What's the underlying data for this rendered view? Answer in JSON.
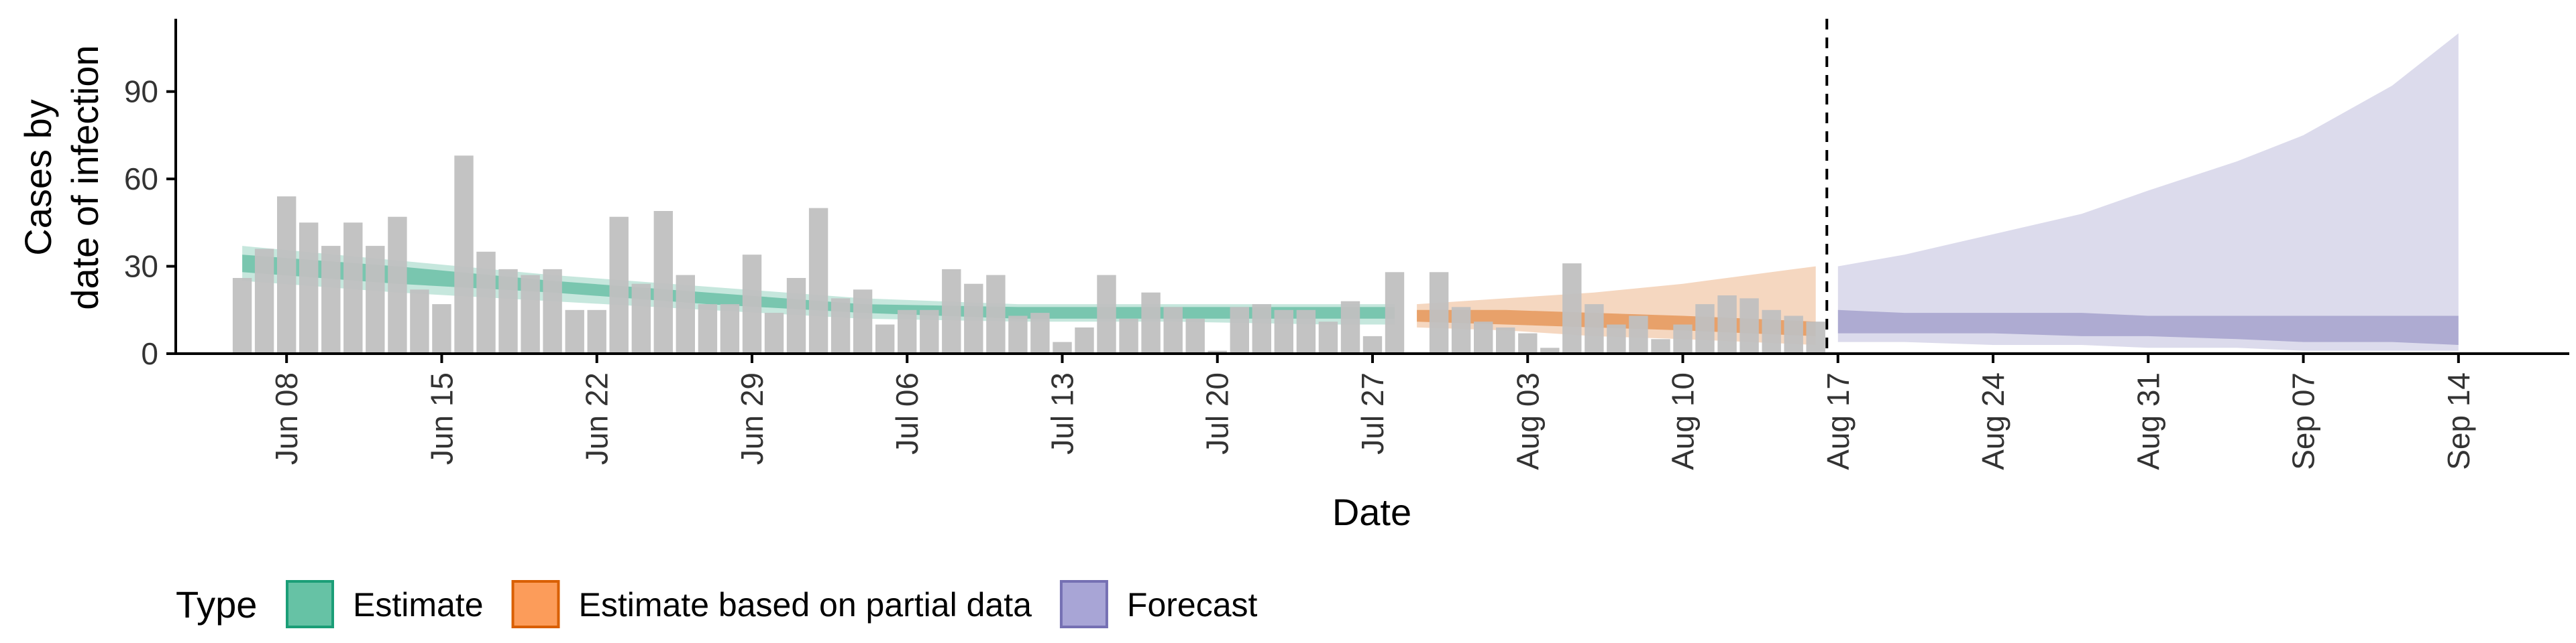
{
  "chart_data": {
    "type": "bar",
    "xlabel": "Date",
    "ylabel_lines": [
      "Cases by",
      "date of infection"
    ],
    "ylim": [
      0,
      115
    ],
    "y_ticks": [
      0,
      30,
      60,
      90
    ],
    "x_range": [
      "2020-06-03",
      "2020-09-19"
    ],
    "x_ticks": [
      {
        "date": "2020-06-08",
        "label": "Jun 08"
      },
      {
        "date": "2020-06-15",
        "label": "Jun 15"
      },
      {
        "date": "2020-06-22",
        "label": "Jun 22"
      },
      {
        "date": "2020-06-29",
        "label": "Jun 29"
      },
      {
        "date": "2020-07-06",
        "label": "Jul 06"
      },
      {
        "date": "2020-07-13",
        "label": "Jul 13"
      },
      {
        "date": "2020-07-20",
        "label": "Jul 20"
      },
      {
        "date": "2020-07-27",
        "label": "Jul 27"
      },
      {
        "date": "2020-08-03",
        "label": "Aug 03"
      },
      {
        "date": "2020-08-10",
        "label": "Aug 10"
      },
      {
        "date": "2020-08-17",
        "label": "Aug 17"
      },
      {
        "date": "2020-08-24",
        "label": "Aug 24"
      },
      {
        "date": "2020-08-31",
        "label": "Aug 31"
      },
      {
        "date": "2020-09-07",
        "label": "Sep 07"
      },
      {
        "date": "2020-09-14",
        "label": "Sep 14"
      }
    ],
    "forecast_start": "2020-08-16",
    "bars": {
      "dates": [
        "2020-06-06",
        "2020-06-07",
        "2020-06-08",
        "2020-06-09",
        "2020-06-10",
        "2020-06-11",
        "2020-06-12",
        "2020-06-13",
        "2020-06-14",
        "2020-06-15",
        "2020-06-16",
        "2020-06-17",
        "2020-06-18",
        "2020-06-19",
        "2020-06-20",
        "2020-06-21",
        "2020-06-22",
        "2020-06-23",
        "2020-06-24",
        "2020-06-25",
        "2020-06-26",
        "2020-06-27",
        "2020-06-28",
        "2020-06-29",
        "2020-06-30",
        "2020-07-01",
        "2020-07-02",
        "2020-07-03",
        "2020-07-04",
        "2020-07-05",
        "2020-07-06",
        "2020-07-07",
        "2020-07-08",
        "2020-07-09",
        "2020-07-10",
        "2020-07-11",
        "2020-07-12",
        "2020-07-13",
        "2020-07-14",
        "2020-07-15",
        "2020-07-16",
        "2020-07-17",
        "2020-07-18",
        "2020-07-19",
        "2020-07-20",
        "2020-07-21",
        "2020-07-22",
        "2020-07-23",
        "2020-07-24",
        "2020-07-25",
        "2020-07-26",
        "2020-07-27",
        "2020-07-28",
        "2020-07-29",
        "2020-07-30",
        "2020-07-31",
        "2020-08-01",
        "2020-08-02",
        "2020-08-03",
        "2020-08-04",
        "2020-08-05",
        "2020-08-06",
        "2020-08-07",
        "2020-08-08",
        "2020-08-09",
        "2020-08-10",
        "2020-08-11",
        "2020-08-12",
        "2020-08-13",
        "2020-08-14",
        "2020-08-15",
        "2020-08-16"
      ],
      "values": [
        26,
        36,
        54,
        45,
        37,
        45,
        37,
        47,
        22,
        17,
        68,
        35,
        29,
        27,
        29,
        15,
        15,
        47,
        24,
        49,
        27,
        17,
        17,
        34,
        14,
        26,
        50,
        19,
        22,
        10,
        15,
        15,
        29,
        24,
        27,
        13,
        14,
        4,
        9,
        27,
        12,
        21,
        16,
        12,
        1,
        16,
        17,
        15,
        15,
        11,
        18,
        6,
        28,
        0,
        28,
        16,
        11,
        9,
        7,
        2,
        31,
        17,
        10,
        13,
        5,
        10,
        17,
        20,
        19,
        15,
        13,
        11
      ]
    },
    "series": [
      {
        "name": "Estimate",
        "color": "#1b9e77",
        "dates": [
          "2020-06-06",
          "2020-06-13",
          "2020-06-20",
          "2020-06-27",
          "2020-07-04",
          "2020-07-11",
          "2020-07-18",
          "2020-07-25",
          "2020-07-28"
        ],
        "median": [
          31,
          27,
          23,
          19,
          16,
          14,
          14,
          14,
          14
        ],
        "lower50": [
          28,
          24,
          21,
          17,
          14,
          12,
          12,
          12,
          12
        ],
        "upper50": [
          34,
          30,
          25,
          21,
          17,
          16,
          16,
          16,
          16
        ],
        "lower90": [
          25,
          21,
          18,
          15,
          12,
          11,
          11,
          10,
          10
        ],
        "upper90": [
          37,
          32,
          27,
          23,
          19,
          17,
          17,
          17,
          17
        ]
      },
      {
        "name": "Estimate based on partial data",
        "color": "#d95f02",
        "dates": [
          "2020-07-29",
          "2020-08-02",
          "2020-08-06",
          "2020-08-10",
          "2020-08-13",
          "2020-08-16"
        ],
        "median": [
          13,
          12,
          11,
          10,
          9,
          8
        ],
        "lower50": [
          11,
          10,
          9,
          8,
          7,
          6
        ],
        "upper50": [
          15,
          15,
          14,
          13,
          12,
          11
        ],
        "lower90": [
          9,
          8,
          6,
          5,
          4,
          3
        ],
        "upper90": [
          17,
          19,
          21,
          24,
          27,
          30
        ]
      },
      {
        "name": "Forecast",
        "color": "#7570b3",
        "dates": [
          "2020-08-17",
          "2020-08-20",
          "2020-08-24",
          "2020-08-28",
          "2020-08-31",
          "2020-09-04",
          "2020-09-07",
          "2020-09-11",
          "2020-09-14"
        ],
        "median": [
          10,
          10,
          10,
          9,
          9,
          9,
          8,
          8,
          8
        ],
        "lower50": [
          7,
          7,
          7,
          6,
          6,
          5,
          4,
          4,
          3
        ],
        "upper50": [
          15,
          14,
          14,
          14,
          13,
          13,
          13,
          13,
          13
        ],
        "lower90": [
          4,
          4,
          3,
          3,
          2,
          2,
          1,
          1,
          1
        ],
        "upper90": [
          30,
          34,
          41,
          48,
          56,
          66,
          75,
          92,
          110
        ]
      }
    ],
    "legend": {
      "title": "Type",
      "position": "bottom-left",
      "items": [
        {
          "label": "Estimate",
          "fill": "#66c2a5",
          "stroke": "#1b9e77"
        },
        {
          "label": "Estimate based on partial data",
          "fill": "#fc9c5a",
          "stroke": "#d95f02"
        },
        {
          "label": "Forecast",
          "fill": "#a8a5d6",
          "stroke": "#7570b3"
        }
      ]
    },
    "colors": {
      "bar": "#c0c0c0",
      "axis": "#000000",
      "tick_text": "#333333",
      "forecast_line": "#000000"
    }
  }
}
